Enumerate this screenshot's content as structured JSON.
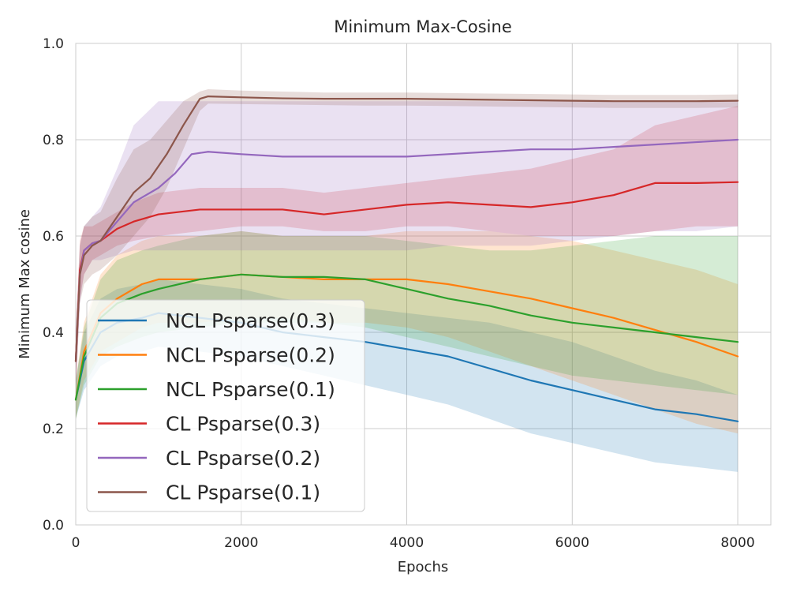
{
  "chart_data": {
    "type": "line",
    "title": "Minimum Max-Cosine",
    "xlabel": "Epochs",
    "ylabel": "Minimum Max cosine",
    "xlim": [
      0,
      8400
    ],
    "ylim": [
      0.0,
      1.0
    ],
    "xticks": [
      0,
      2000,
      4000,
      6000,
      8000
    ],
    "yticks": [
      0.0,
      0.2,
      0.4,
      0.6,
      0.8,
      1.0
    ],
    "xtick_labels": [
      "0",
      "2000",
      "4000",
      "6000",
      "8000"
    ],
    "ytick_labels": [
      "0.0",
      "0.2",
      "0.4",
      "0.6",
      "0.8",
      "1.0"
    ],
    "grid": true,
    "legend_position": "lower-left",
    "series": [
      {
        "name": "NCL Psparse(0.3)",
        "color": "#1f77b4",
        "x": [
          0,
          100,
          300,
          500,
          800,
          1000,
          1500,
          2000,
          2500,
          3000,
          3500,
          4000,
          4500,
          5000,
          5500,
          6000,
          6500,
          7000,
          7500,
          8000
        ],
        "y": [
          0.26,
          0.34,
          0.4,
          0.42,
          0.43,
          0.44,
          0.43,
          0.42,
          0.4,
          0.39,
          0.38,
          0.365,
          0.35,
          0.325,
          0.3,
          0.28,
          0.26,
          0.24,
          0.23,
          0.215
        ],
        "lower": [
          0.22,
          0.28,
          0.33,
          0.35,
          0.36,
          0.37,
          0.36,
          0.35,
          0.33,
          0.31,
          0.29,
          0.27,
          0.25,
          0.22,
          0.19,
          0.17,
          0.15,
          0.13,
          0.12,
          0.11
        ],
        "upper": [
          0.3,
          0.4,
          0.47,
          0.49,
          0.5,
          0.51,
          0.5,
          0.49,
          0.47,
          0.46,
          0.45,
          0.44,
          0.43,
          0.42,
          0.4,
          0.38,
          0.35,
          0.32,
          0.3,
          0.27
        ]
      },
      {
        "name": "NCL Psparse(0.2)",
        "color": "#ff7f0e",
        "x": [
          0,
          100,
          300,
          500,
          800,
          1000,
          1500,
          2000,
          2500,
          3000,
          3500,
          4000,
          4500,
          5000,
          5500,
          6000,
          6500,
          7000,
          7500,
          8000
        ],
        "y": [
          0.26,
          0.36,
          0.44,
          0.47,
          0.5,
          0.51,
          0.51,
          0.52,
          0.515,
          0.51,
          0.51,
          0.51,
          0.5,
          0.485,
          0.47,
          0.45,
          0.43,
          0.405,
          0.38,
          0.35
        ],
        "lower": [
          0.22,
          0.3,
          0.36,
          0.38,
          0.41,
          0.42,
          0.42,
          0.43,
          0.43,
          0.42,
          0.42,
          0.41,
          0.39,
          0.36,
          0.33,
          0.3,
          0.27,
          0.24,
          0.21,
          0.19
        ],
        "upper": [
          0.3,
          0.42,
          0.52,
          0.56,
          0.59,
          0.6,
          0.6,
          0.61,
          0.6,
          0.6,
          0.6,
          0.61,
          0.61,
          0.61,
          0.6,
          0.59,
          0.57,
          0.55,
          0.53,
          0.5
        ]
      },
      {
        "name": "NCL Psparse(0.1)",
        "color": "#2ca02c",
        "x": [
          0,
          100,
          300,
          500,
          800,
          1000,
          1500,
          2000,
          2500,
          3000,
          3500,
          4000,
          4500,
          5000,
          5500,
          6000,
          6500,
          7000,
          7500,
          8000
        ],
        "y": [
          0.26,
          0.35,
          0.43,
          0.46,
          0.48,
          0.49,
          0.51,
          0.52,
          0.515,
          0.515,
          0.51,
          0.49,
          0.47,
          0.455,
          0.435,
          0.42,
          0.41,
          0.4,
          0.39,
          0.38
        ],
        "lower": [
          0.22,
          0.29,
          0.35,
          0.37,
          0.39,
          0.4,
          0.41,
          0.42,
          0.42,
          0.42,
          0.41,
          0.39,
          0.37,
          0.35,
          0.33,
          0.31,
          0.3,
          0.29,
          0.28,
          0.27
        ],
        "upper": [
          0.3,
          0.41,
          0.51,
          0.55,
          0.57,
          0.58,
          0.6,
          0.61,
          0.6,
          0.6,
          0.6,
          0.59,
          0.58,
          0.57,
          0.57,
          0.58,
          0.59,
          0.6,
          0.6,
          0.6
        ]
      },
      {
        "name": "CL Psparse(0.3)",
        "color": "#d62728",
        "x": [
          0,
          50,
          100,
          200,
          300,
          500,
          700,
          1000,
          1500,
          2000,
          2500,
          3000,
          3500,
          4000,
          4500,
          5000,
          5500,
          6000,
          6500,
          7000,
          7500,
          8000
        ],
        "y": [
          0.34,
          0.53,
          0.57,
          0.585,
          0.59,
          0.615,
          0.63,
          0.645,
          0.655,
          0.655,
          0.655,
          0.645,
          0.655,
          0.665,
          0.67,
          0.665,
          0.66,
          0.67,
          0.685,
          0.71,
          0.71,
          0.712
        ],
        "lower": [
          0.28,
          0.47,
          0.52,
          0.55,
          0.56,
          0.58,
          0.59,
          0.6,
          0.61,
          0.62,
          0.62,
          0.61,
          0.61,
          0.62,
          0.62,
          0.61,
          0.6,
          0.6,
          0.6,
          0.61,
          0.62,
          0.62
        ],
        "upper": [
          0.4,
          0.59,
          0.62,
          0.62,
          0.63,
          0.65,
          0.67,
          0.69,
          0.7,
          0.7,
          0.7,
          0.69,
          0.7,
          0.71,
          0.72,
          0.73,
          0.74,
          0.76,
          0.78,
          0.83,
          0.85,
          0.87
        ]
      },
      {
        "name": "CL Psparse(0.2)",
        "color": "#9467bd",
        "x": [
          0,
          50,
          100,
          200,
          300,
          500,
          700,
          1000,
          1200,
          1400,
          1600,
          2000,
          2500,
          3000,
          3500,
          4000,
          4500,
          5000,
          5500,
          6000,
          6500,
          7000,
          7500,
          8000
        ],
        "y": [
          0.34,
          0.52,
          0.57,
          0.585,
          0.59,
          0.63,
          0.67,
          0.7,
          0.73,
          0.77,
          0.775,
          0.77,
          0.765,
          0.765,
          0.765,
          0.765,
          0.77,
          0.775,
          0.78,
          0.78,
          0.785,
          0.79,
          0.795,
          0.8
        ],
        "lower": [
          0.28,
          0.46,
          0.52,
          0.55,
          0.55,
          0.56,
          0.57,
          0.57,
          0.57,
          0.57,
          0.57,
          0.57,
          0.57,
          0.57,
          0.57,
          0.57,
          0.58,
          0.58,
          0.58,
          0.59,
          0.6,
          0.61,
          0.61,
          0.62
        ],
        "upper": [
          0.4,
          0.58,
          0.62,
          0.64,
          0.66,
          0.74,
          0.83,
          0.88,
          0.88,
          0.88,
          0.88,
          0.88,
          0.88,
          0.88,
          0.88,
          0.88,
          0.88,
          0.88,
          0.88,
          0.88,
          0.88,
          0.88,
          0.88,
          0.88
        ]
      },
      {
        "name": "CL Psparse(0.1)",
        "color": "#8c564b",
        "x": [
          0,
          50,
          100,
          200,
          300,
          500,
          700,
          900,
          1100,
          1300,
          1500,
          1600,
          2000,
          2500,
          3000,
          3500,
          4000,
          4500,
          5000,
          5500,
          6000,
          6500,
          7000,
          7500,
          8000
        ],
        "y": [
          0.34,
          0.52,
          0.56,
          0.58,
          0.59,
          0.64,
          0.69,
          0.72,
          0.77,
          0.83,
          0.885,
          0.89,
          0.888,
          0.886,
          0.885,
          0.885,
          0.885,
          0.884,
          0.883,
          0.882,
          0.881,
          0.88,
          0.88,
          0.88,
          0.881
        ],
        "lower": [
          0.28,
          0.46,
          0.5,
          0.52,
          0.53,
          0.56,
          0.6,
          0.64,
          0.7,
          0.78,
          0.86,
          0.875,
          0.874,
          0.873,
          0.872,
          0.871,
          0.871,
          0.87,
          0.869,
          0.868,
          0.867,
          0.866,
          0.866,
          0.866,
          0.867
        ],
        "upper": [
          0.4,
          0.58,
          0.62,
          0.64,
          0.65,
          0.72,
          0.78,
          0.8,
          0.84,
          0.88,
          0.9,
          0.905,
          0.902,
          0.9,
          0.898,
          0.898,
          0.898,
          0.897,
          0.896,
          0.895,
          0.894,
          0.893,
          0.893,
          0.893,
          0.894
        ]
      }
    ]
  }
}
